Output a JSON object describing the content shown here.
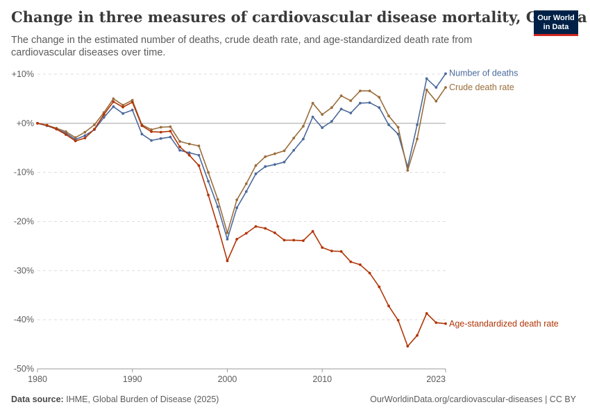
{
  "header": {
    "title": "Change in three measures of cardiovascular disease mortality, Guyana",
    "subtitle": "The change in the estimated number of deaths, crude death rate, and age-standardized death rate from cardiovascular diseases over time.",
    "logo_line1": "Our World",
    "logo_line2": "in Data"
  },
  "footer": {
    "source_label": "Data source:",
    "source_text": "IHME, Global Burden of Disease (2025)",
    "url_text": "OurWorldinData.org/cardiovascular-diseases",
    "license_text": "| CC BY"
  },
  "colors": {
    "number_of_deaths": "#4c6a9c",
    "crude_death_rate": "#9a6d3a",
    "age_standardized": "#b13507",
    "grid": "#dddddd",
    "zero_line": "#a1a1a1",
    "text": "#5b5b5b"
  },
  "chart_data": {
    "type": "line",
    "title": "Change in three measures of cardiovascular disease mortality, Guyana",
    "xlabel": "",
    "ylabel": "",
    "xlim": [
      1980,
      2023
    ],
    "ylim": [
      -50,
      10
    ],
    "x_ticks": [
      1980,
      1990,
      2000,
      2010,
      2023
    ],
    "y_ticks": [
      10,
      0,
      -10,
      -20,
      -30,
      -40,
      -50
    ],
    "y_tick_labels": [
      "+10%",
      "+0%",
      "-10%",
      "-20%",
      "-30%",
      "-40%",
      "-50%"
    ],
    "grid": "horizontal dashed",
    "legend": "inline labels at line ends (right)",
    "x": [
      1980,
      1981,
      1982,
      1983,
      1984,
      1985,
      1986,
      1987,
      1988,
      1989,
      1990,
      1991,
      1992,
      1993,
      1994,
      1995,
      1996,
      1997,
      1998,
      1999,
      2000,
      2001,
      2002,
      2003,
      2004,
      2005,
      2006,
      2007,
      2008,
      2009,
      2010,
      2011,
      2012,
      2013,
      2014,
      2015,
      2016,
      2017,
      2018,
      2019,
      2020,
      2021,
      2022,
      2023
    ],
    "series": [
      {
        "name": "Number of deaths",
        "key": "number_of_deaths",
        "values": [
          0,
          -0.5,
          -1.2,
          -2,
          -3.3,
          -2.5,
          -1.3,
          1.2,
          3.4,
          2,
          2.7,
          -2.2,
          -3.5,
          -3.1,
          -2.8,
          -5.5,
          -6,
          -6.5,
          -11.8,
          -17,
          -23.6,
          -17.2,
          -13.9,
          -10.3,
          -8.8,
          -8.4,
          -7.9,
          -5.5,
          -3.2,
          1.3,
          -0.9,
          0.4,
          2.9,
          2.1,
          4.1,
          4.2,
          3.2,
          -0.3,
          -2.2,
          -8.9,
          -0.3,
          9.1,
          7.3,
          10.1
        ]
      },
      {
        "name": "Crude death rate",
        "key": "crude_death_rate",
        "values": [
          0,
          -0.4,
          -1,
          -1.7,
          -2.9,
          -1.8,
          -0.3,
          2.2,
          5,
          3.7,
          4.7,
          -0.3,
          -1.3,
          -0.8,
          -0.7,
          -3.7,
          -4.2,
          -4.6,
          -10,
          -15.5,
          -22.3,
          -15.6,
          -12.3,
          -8.6,
          -6.8,
          -6.2,
          -5.6,
          -3,
          -0.6,
          4.1,
          1.8,
          3.2,
          5.6,
          4.6,
          6.6,
          6.6,
          5.3,
          1.5,
          -0.8,
          -9.6,
          -3.2,
          6.8,
          4.5,
          7.3
        ]
      },
      {
        "name": "Age-standardized death rate",
        "key": "age_standardized",
        "values": [
          0,
          -0.4,
          -1.2,
          -2.3,
          -3.6,
          -3,
          -1.2,
          1.8,
          4.4,
          3.3,
          4.3,
          -0.5,
          -1.7,
          -1.8,
          -1.6,
          -4.8,
          -6.5,
          -8.6,
          -14.6,
          -21,
          -28,
          -23.6,
          -22.4,
          -21,
          -21.4,
          -22.3,
          -23.8,
          -23.8,
          -23.9,
          -22,
          -25.3,
          -26,
          -26.1,
          -28.2,
          -28.8,
          -30.5,
          -33.3,
          -37.2,
          -40.1,
          -45.4,
          -43.2,
          -38.7,
          -40.6,
          -40.8
        ]
      }
    ]
  }
}
